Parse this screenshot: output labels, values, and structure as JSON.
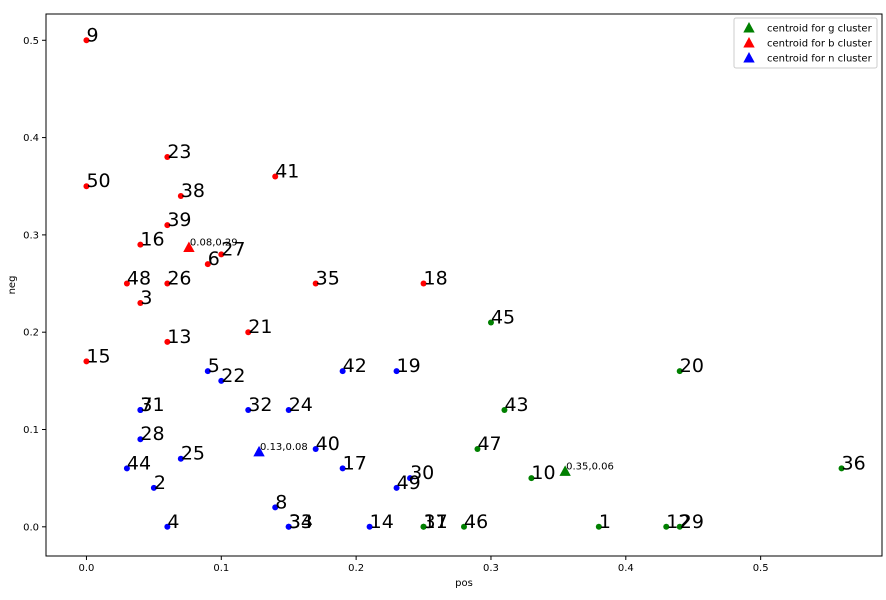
{
  "chart_data": {
    "type": "scatter",
    "xlabel": "pos",
    "ylabel": "neg",
    "xlim": [
      -0.03,
      0.59
    ],
    "ylim": [
      -0.03,
      0.527
    ],
    "xticks": [
      0.0,
      0.1,
      0.2,
      0.3,
      0.4,
      0.5
    ],
    "xtick_labels": [
      "0.0",
      "0.1",
      "0.2",
      "0.3",
      "0.4",
      "0.5"
    ],
    "yticks": [
      0.0,
      0.1,
      0.2,
      0.3,
      0.4,
      0.5
    ],
    "ytick_labels": [
      "0.0",
      "0.1",
      "0.2",
      "0.3",
      "0.4",
      "0.5"
    ],
    "grid": false,
    "legend_position": "top-right",
    "colors": {
      "g": "#008000",
      "b": "#ff0000",
      "n": "#0000ff"
    },
    "points": [
      {
        "id": "9",
        "x": 0.0,
        "y": 0.5,
        "cluster": "b"
      },
      {
        "id": "23",
        "x": 0.06,
        "y": 0.38,
        "cluster": "b"
      },
      {
        "id": "41",
        "x": 0.14,
        "y": 0.36,
        "cluster": "b"
      },
      {
        "id": "50",
        "x": 0.0,
        "y": 0.35,
        "cluster": "b"
      },
      {
        "id": "38",
        "x": 0.07,
        "y": 0.34,
        "cluster": "b"
      },
      {
        "id": "39",
        "x": 0.06,
        "y": 0.31,
        "cluster": "b"
      },
      {
        "id": "16",
        "x": 0.04,
        "y": 0.29,
        "cluster": "b"
      },
      {
        "id": "27",
        "x": 0.1,
        "y": 0.28,
        "cluster": "b"
      },
      {
        "id": "6",
        "x": 0.09,
        "y": 0.27,
        "cluster": "b"
      },
      {
        "id": "48",
        "x": 0.03,
        "y": 0.25,
        "cluster": "b"
      },
      {
        "id": "26",
        "x": 0.06,
        "y": 0.25,
        "cluster": "b"
      },
      {
        "id": "35",
        "x": 0.17,
        "y": 0.25,
        "cluster": "b"
      },
      {
        "id": "18",
        "x": 0.25,
        "y": 0.25,
        "cluster": "b"
      },
      {
        "id": "3",
        "x": 0.04,
        "y": 0.23,
        "cluster": "b"
      },
      {
        "id": "21",
        "x": 0.12,
        "y": 0.2,
        "cluster": "b"
      },
      {
        "id": "13",
        "x": 0.06,
        "y": 0.19,
        "cluster": "b"
      },
      {
        "id": "15",
        "x": 0.0,
        "y": 0.17,
        "cluster": "b"
      },
      {
        "id": "45",
        "x": 0.3,
        "y": 0.21,
        "cluster": "g"
      },
      {
        "id": "20",
        "x": 0.44,
        "y": 0.16,
        "cluster": "g"
      },
      {
        "id": "43",
        "x": 0.31,
        "y": 0.12,
        "cluster": "g"
      },
      {
        "id": "47",
        "x": 0.29,
        "y": 0.08,
        "cluster": "g"
      },
      {
        "id": "36",
        "x": 0.56,
        "y": 0.06,
        "cluster": "g"
      },
      {
        "id": "10",
        "x": 0.33,
        "y": 0.05,
        "cluster": "g"
      },
      {
        "id": "37",
        "x": 0.25,
        "y": 0.0,
        "cluster": "g"
      },
      {
        "id": "11",
        "x": 0.25,
        "y": 0.0,
        "cluster": "g"
      },
      {
        "id": "46",
        "x": 0.28,
        "y": 0.0,
        "cluster": "g"
      },
      {
        "id": "1",
        "x": 0.38,
        "y": 0.0,
        "cluster": "g"
      },
      {
        "id": "12",
        "x": 0.43,
        "y": 0.0,
        "cluster": "g"
      },
      {
        "id": "29",
        "x": 0.44,
        "y": 0.0,
        "cluster": "g"
      },
      {
        "id": "5",
        "x": 0.09,
        "y": 0.16,
        "cluster": "n"
      },
      {
        "id": "42",
        "x": 0.19,
        "y": 0.16,
        "cluster": "n"
      },
      {
        "id": "19",
        "x": 0.23,
        "y": 0.16,
        "cluster": "n"
      },
      {
        "id": "22",
        "x": 0.1,
        "y": 0.15,
        "cluster": "n"
      },
      {
        "id": "7",
        "x": 0.04,
        "y": 0.12,
        "cluster": "n"
      },
      {
        "id": "31",
        "x": 0.04,
        "y": 0.12,
        "cluster": "n"
      },
      {
        "id": "32",
        "x": 0.12,
        "y": 0.12,
        "cluster": "n"
      },
      {
        "id": "24",
        "x": 0.15,
        "y": 0.12,
        "cluster": "n"
      },
      {
        "id": "28",
        "x": 0.04,
        "y": 0.09,
        "cluster": "n"
      },
      {
        "id": "40",
        "x": 0.17,
        "y": 0.08,
        "cluster": "n"
      },
      {
        "id": "25",
        "x": 0.07,
        "y": 0.07,
        "cluster": "n"
      },
      {
        "id": "44",
        "x": 0.03,
        "y": 0.06,
        "cluster": "n"
      },
      {
        "id": "17",
        "x": 0.19,
        "y": 0.06,
        "cluster": "n"
      },
      {
        "id": "30",
        "x": 0.24,
        "y": 0.05,
        "cluster": "n"
      },
      {
        "id": "2",
        "x": 0.05,
        "y": 0.04,
        "cluster": "n"
      },
      {
        "id": "49",
        "x": 0.23,
        "y": 0.04,
        "cluster": "n"
      },
      {
        "id": "8",
        "x": 0.14,
        "y": 0.02,
        "cluster": "n"
      },
      {
        "id": "4",
        "x": 0.06,
        "y": 0.0,
        "cluster": "n"
      },
      {
        "id": "33",
        "x": 0.15,
        "y": 0.0,
        "cluster": "n"
      },
      {
        "id": "34",
        "x": 0.15,
        "y": 0.0,
        "cluster": "n"
      },
      {
        "id": "14",
        "x": 0.21,
        "y": 0.0,
        "cluster": "n"
      }
    ],
    "centroids": [
      {
        "cluster": "g",
        "x": 0.355,
        "y": 0.057,
        "label": "0.35,0.06"
      },
      {
        "cluster": "b",
        "x": 0.076,
        "y": 0.287,
        "label": "0.08,0.29"
      },
      {
        "cluster": "n",
        "x": 0.128,
        "y": 0.077,
        "label": "0.13,0.08"
      }
    ],
    "legend": [
      {
        "label": "centroid for g cluster",
        "cluster": "g"
      },
      {
        "label": "centroid for b cluster",
        "cluster": "b"
      },
      {
        "label": "centroid for n cluster",
        "cluster": "n"
      }
    ]
  }
}
